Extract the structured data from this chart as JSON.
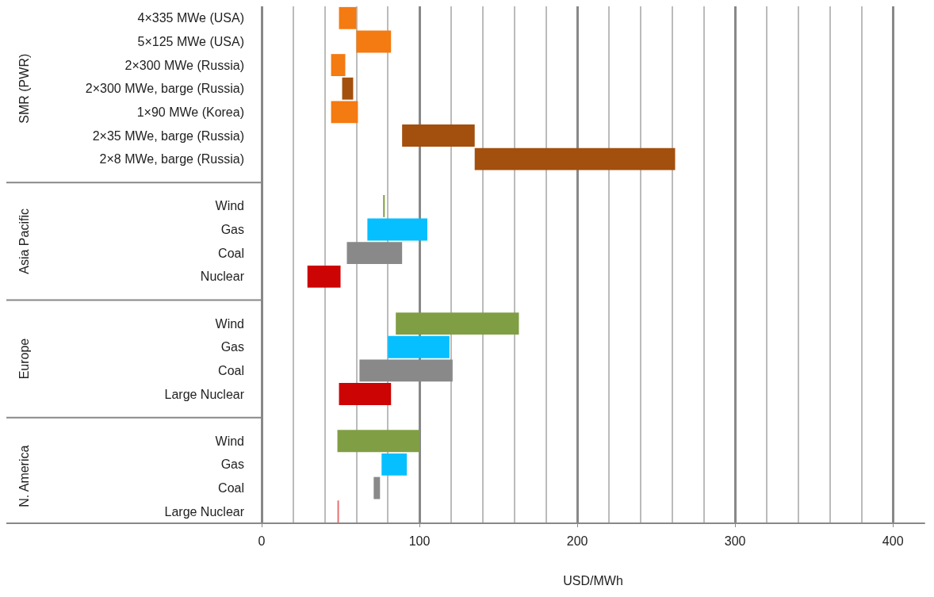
{
  "chart_data": {
    "type": "bar",
    "orientation": "horizontal",
    "xlabel": "USD/MWh",
    "categories": [
      "4×335 MWe (USA)",
      "5×125 MWe (USA)",
      "2×300 MWe (Russia)",
      "2×300 MWe, barge (Russia)",
      "1×90 MWe (Korea)",
      "2×35 MWe, barge (Russia)",
      "2×8 MWe, barge (Russia)",
      null,
      "Wind",
      "Gas",
      "Coal",
      "Nuclear",
      null,
      "Wind",
      "Gas",
      "Coal",
      "Large Nuclear",
      null,
      "Wind",
      "Gas",
      "Coal",
      "Large Nuclear"
    ],
    "base": [
      49,
      60,
      44,
      51,
      44,
      89,
      135,
      null,
      77,
      67,
      54,
      29,
      null,
      85,
      80,
      62,
      49,
      null,
      48,
      76,
      71,
      48
    ],
    "values": [
      11,
      22,
      9,
      7,
      17,
      46,
      127,
      null,
      1,
      38,
      35,
      21,
      null,
      78,
      39,
      59,
      33,
      null,
      52,
      16,
      4,
      1
    ],
    "colors": [
      "#f47a12",
      "#f47a12",
      "#f47a12",
      "#a34f0e",
      "#f47a12",
      "#a34f0e",
      "#a34f0e",
      null,
      "#809e44",
      "#06bfff",
      "#898989",
      "#cc0404",
      null,
      "#809e44",
      "#06bfff",
      "#898989",
      "#cc0404",
      null,
      "#809e44",
      "#06bfff",
      "#898989",
      "#e87070"
    ],
    "annotations": [
      "SMR (PWR)",
      "Asia Pacific",
      "Europe",
      "N. America"
    ],
    "xlim": [
      0,
      420
    ],
    "xticks": [
      0,
      100,
      200,
      300,
      400
    ],
    "grid": "x"
  }
}
